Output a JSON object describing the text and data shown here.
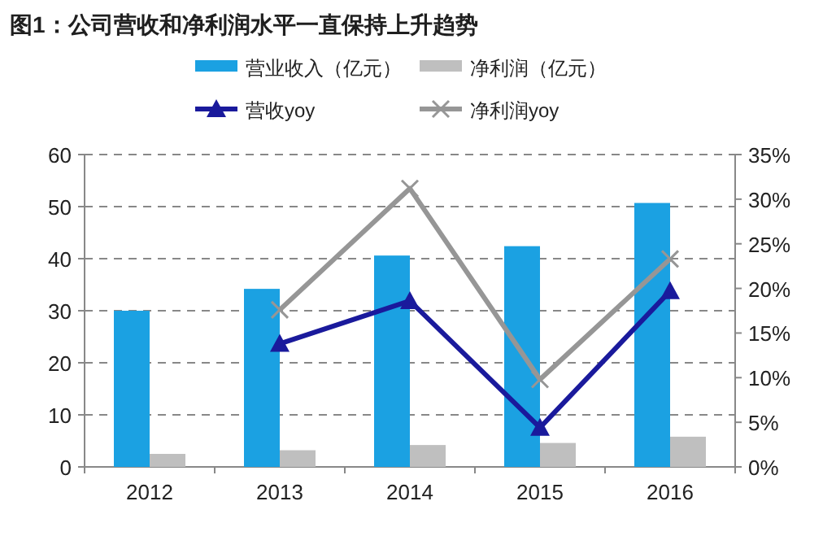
{
  "chart_data": {
    "type": "bar",
    "title": "图1：公司营收和净利润水平一直保持上升趋势",
    "categories": [
      "2012",
      "2013",
      "2014",
      "2015",
      "2016"
    ],
    "series": [
      {
        "name": "营业收入（亿元）",
        "color": "#1ba1e2",
        "values": [
          30.0,
          34.2,
          40.6,
          42.4,
          50.7
        ]
      },
      {
        "name": "净利润（亿元）",
        "color": "#bfbfbf",
        "values": [
          2.5,
          3.2,
          4.2,
          4.6,
          5.8
        ]
      },
      {
        "name": "营收yoy",
        "type": "line",
        "axis": "y2",
        "color": "#1a1a9c",
        "marker": "triangle",
        "values": [
          null,
          13.8,
          18.6,
          4.4,
          19.7
        ]
      },
      {
        "name": "净利润yoy",
        "type": "line",
        "axis": "y2",
        "color": "#969696",
        "marker": "cross",
        "values": [
          null,
          17.6,
          31.2,
          9.8,
          23.3
        ]
      }
    ],
    "ylim": [
      0,
      60
    ],
    "yticks": [
      0,
      10,
      20,
      30,
      40,
      50,
      60
    ],
    "y2lim": [
      0,
      35
    ],
    "y2ticks": [
      {
        "value": 0,
        "label": "0%"
      },
      {
        "value": 5,
        "label": "5%"
      },
      {
        "value": 10,
        "label": "10%"
      },
      {
        "value": 15,
        "label": "15%"
      },
      {
        "value": 20,
        "label": "20%"
      },
      {
        "value": 25,
        "label": "25%"
      },
      {
        "value": 30,
        "label": "30%"
      },
      {
        "value": 35,
        "label": "35%"
      }
    ],
    "grid": "y",
    "legend": "top"
  }
}
